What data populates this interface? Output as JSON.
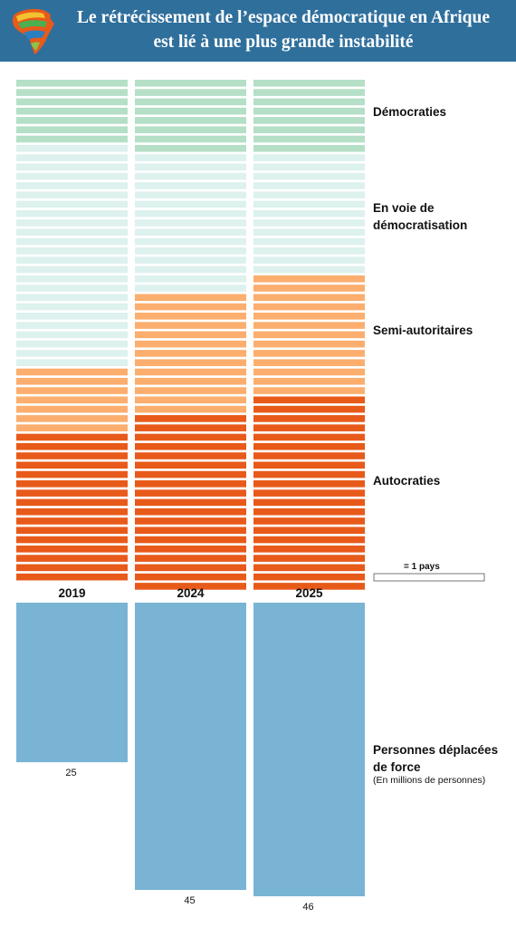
{
  "header": {
    "title_line1": "Le rétrécissement de l’espace démocratique en Afrique",
    "title_line2": "est lié à une plus grande instabilité",
    "logo_icon": "africa-map-logo-icon"
  },
  "chart_data": [
    {
      "type": "waffle",
      "title": "",
      "categories": [
        "2019",
        "2024",
        "2025"
      ],
      "unit_legend": "= 1 pays",
      "series": [
        {
          "name": "Démocraties",
          "values": [
            7,
            8,
            8
          ],
          "color": "#b5dfc7"
        },
        {
          "name": "En voie de démocratisation",
          "values": [
            24,
            15,
            13
          ],
          "color": "#ddf1ee"
        },
        {
          "name": "Semi-autoritaires",
          "values": [
            7,
            13,
            13
          ],
          "color": "#fbae6e"
        },
        {
          "name": "Autocraties",
          "values": [
            16,
            19,
            21
          ],
          "color": "#e85a1a"
        }
      ],
      "category_label_lines": [
        [
          "Démocraties"
        ],
        [
          "En voie de",
          "démocratisation"
        ],
        [
          "Semi-autoritaires"
        ],
        [
          "Autocraties"
        ]
      ]
    },
    {
      "type": "bar",
      "title": "",
      "categories": [
        "2019",
        "2024",
        "2025"
      ],
      "values": [
        25,
        45,
        46
      ],
      "value_labels": [
        "25",
        "45",
        "46"
      ],
      "color": "#7ab4d4",
      "label_lines": [
        "Personnes déplacées",
        "de force"
      ],
      "sublabel": "(En millions de personnes)",
      "ylim": [
        0,
        46
      ]
    }
  ]
}
